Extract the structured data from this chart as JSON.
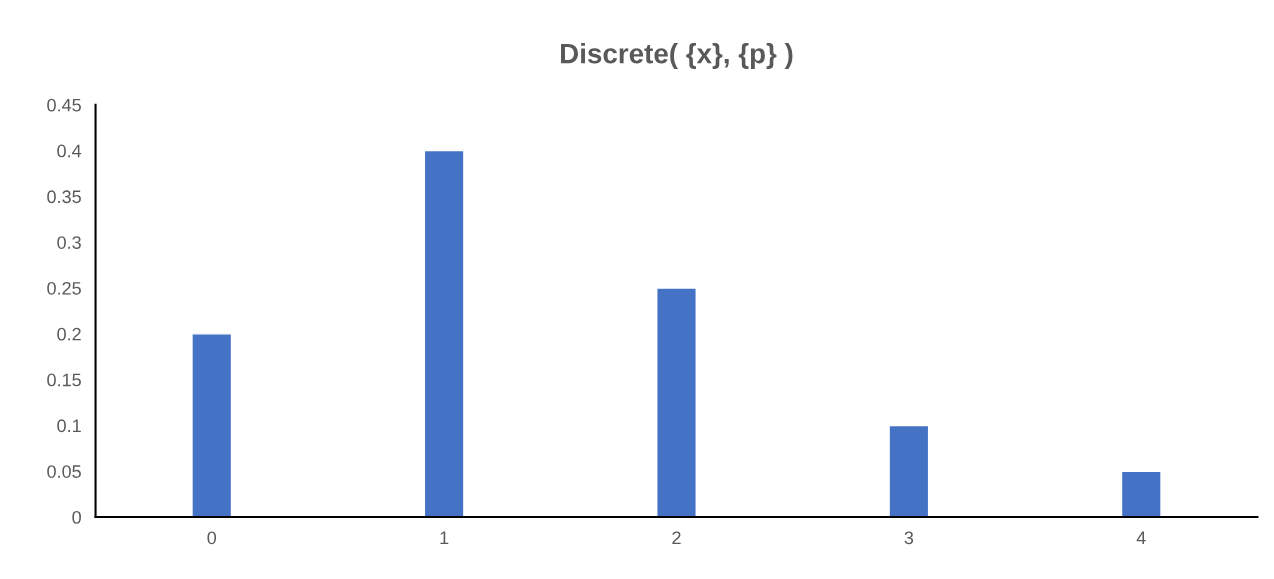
{
  "chart_data": {
    "type": "bar",
    "title": "Discrete( {x}, {p} )",
    "categories": [
      "0",
      "1",
      "2",
      "3",
      "4"
    ],
    "values": [
      0.2,
      0.4,
      0.25,
      0.1,
      0.05
    ],
    "color": "#4472c4",
    "ylim": [
      0,
      0.45
    ],
    "yticks": [
      0,
      0.05,
      0.1,
      0.15,
      0.2,
      0.25,
      0.3,
      0.35,
      0.4,
      0.45
    ],
    "grid": false
  }
}
